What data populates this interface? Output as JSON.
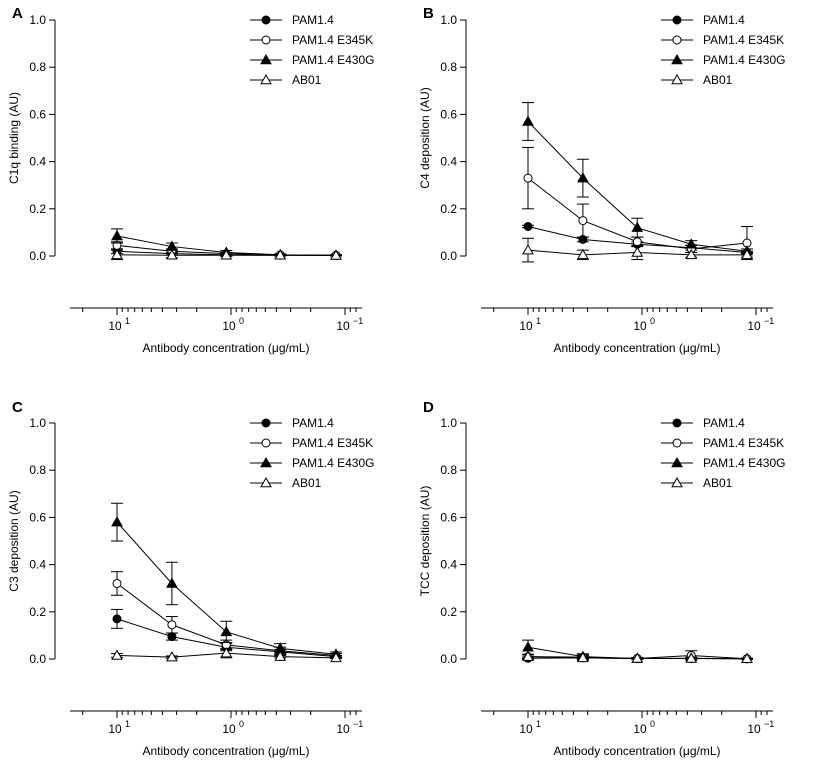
{
  "figure": {
    "background": "#ffffff",
    "ink": "#000000"
  },
  "chart_data": [
    {
      "type": "line",
      "panel": "A",
      "xlabel": "Antibody concentration (μg/mL)",
      "ylabel": "C1q binding (AU)",
      "x": [
        10,
        3.3,
        1.1,
        0.37,
        0.12
      ],
      "x_scale": "log-reversed",
      "x_ticks": [
        {
          "value": 10,
          "base": "10",
          "exp": "1"
        },
        {
          "value": 1,
          "base": "10",
          "exp": "0"
        },
        {
          "value": 0.1,
          "base": "10",
          "exp": "−1"
        }
      ],
      "ylim": [
        0,
        1.0
      ],
      "y_ticks": [
        "0.0",
        "0.2",
        "0.4",
        "0.6",
        "0.8",
        "1.0"
      ],
      "legend_position": "top-right",
      "series": [
        {
          "name": "PAM1.4",
          "marker": "filled-circle",
          "values": [
            0.02,
            0.01,
            0.005,
            0.003,
            0.002
          ],
          "errors": [
            0.01,
            0.005,
            0.003,
            0.002,
            0.002
          ]
        },
        {
          "name": "PAM1.4 E345K",
          "marker": "open-circle",
          "values": [
            0.045,
            0.02,
            0.01,
            0.005,
            0.003
          ],
          "errors": [
            0.015,
            0.01,
            0.005,
            0.003,
            0.002
          ]
        },
        {
          "name": "PAM1.4 E430G",
          "marker": "filled-triangle",
          "values": [
            0.085,
            0.04,
            0.015,
            0.005,
            0.003
          ],
          "errors": [
            0.03,
            0.015,
            0.008,
            0.004,
            0.003
          ]
        },
        {
          "name": "AB01",
          "marker": "open-triangle",
          "values": [
            0.005,
            0.003,
            0.003,
            0.003,
            0.002
          ],
          "errors": [
            0.02,
            0.01,
            0.005,
            0.003,
            0.002
          ]
        }
      ]
    },
    {
      "type": "line",
      "panel": "B",
      "xlabel": "Antibody concentration (μg/mL)",
      "ylabel": "C4 deposition (AU)",
      "x": [
        10,
        3.3,
        1.1,
        0.37,
        0.12
      ],
      "x_scale": "log-reversed",
      "x_ticks": [
        {
          "value": 10,
          "base": "10",
          "exp": "1"
        },
        {
          "value": 1,
          "base": "10",
          "exp": "0"
        },
        {
          "value": 0.1,
          "base": "10",
          "exp": "−1"
        }
      ],
      "ylim": [
        0,
        1.0
      ],
      "y_ticks": [
        "0.0",
        "0.2",
        "0.4",
        "0.6",
        "0.8",
        "1.0"
      ],
      "legend_position": "top-right",
      "series": [
        {
          "name": "PAM1.4",
          "marker": "filled-circle",
          "values": [
            0.125,
            0.07,
            0.05,
            0.035,
            0.015
          ],
          "errors": [
            0.005,
            0.01,
            0.01,
            0.01,
            0.005
          ]
        },
        {
          "name": "PAM1.4 E345K",
          "marker": "open-circle",
          "values": [
            0.33,
            0.15,
            0.06,
            0.03,
            0.055
          ],
          "errors": [
            0.13,
            0.07,
            0.02,
            0.015,
            0.07
          ]
        },
        {
          "name": "PAM1.4 E430G",
          "marker": "filled-triangle",
          "values": [
            0.57,
            0.33,
            0.12,
            0.05,
            0.02
          ],
          "errors": [
            0.08,
            0.08,
            0.04,
            0.015,
            0.01
          ]
        },
        {
          "name": "AB01",
          "marker": "open-triangle",
          "values": [
            0.025,
            0.005,
            0.015,
            0.005,
            0.005
          ],
          "errors": [
            0.05,
            0.02,
            0.03,
            0.01,
            0.01
          ]
        }
      ]
    },
    {
      "type": "line",
      "panel": "C",
      "xlabel": "Antibody concentration (μg/mL)",
      "ylabel": "C3 deposition (AU)",
      "x": [
        10,
        3.3,
        1.1,
        0.37,
        0.12
      ],
      "x_scale": "log-reversed",
      "x_ticks": [
        {
          "value": 10,
          "base": "10",
          "exp": "1"
        },
        {
          "value": 1,
          "base": "10",
          "exp": "0"
        },
        {
          "value": 0.1,
          "base": "10",
          "exp": "−1"
        }
      ],
      "ylim": [
        0,
        1.0
      ],
      "y_ticks": [
        "0.0",
        "0.2",
        "0.4",
        "0.6",
        "0.8",
        "1.0"
      ],
      "legend_position": "top-right",
      "series": [
        {
          "name": "PAM1.4",
          "marker": "filled-circle",
          "values": [
            0.17,
            0.095,
            0.05,
            0.03,
            0.01
          ],
          "errors": [
            0.04,
            0.015,
            0.015,
            0.01,
            0.005
          ]
        },
        {
          "name": "PAM1.4 E345K",
          "marker": "open-circle",
          "values": [
            0.32,
            0.145,
            0.06,
            0.035,
            0.015
          ],
          "errors": [
            0.05,
            0.035,
            0.02,
            0.015,
            0.008
          ]
        },
        {
          "name": "PAM1.4 E430G",
          "marker": "filled-triangle",
          "values": [
            0.58,
            0.32,
            0.115,
            0.045,
            0.02
          ],
          "errors": [
            0.08,
            0.09,
            0.045,
            0.02,
            0.01
          ]
        },
        {
          "name": "AB01",
          "marker": "open-triangle",
          "values": [
            0.015,
            0.008,
            0.025,
            0.01,
            0.005
          ],
          "errors": [
            0.008,
            0.005,
            0.02,
            0.005,
            0.003
          ]
        }
      ]
    },
    {
      "type": "line",
      "panel": "D",
      "xlabel": "Antibody concentration (μg/mL)",
      "ylabel": "TCC deposition (AU)",
      "x": [
        10,
        3.3,
        1.1,
        0.37,
        0.12
      ],
      "x_scale": "log-reversed",
      "x_ticks": [
        {
          "value": 10,
          "base": "10",
          "exp": "1"
        },
        {
          "value": 1,
          "base": "10",
          "exp": "0"
        },
        {
          "value": 0.1,
          "base": "10",
          "exp": "−1"
        }
      ],
      "ylim": [
        0,
        1.0
      ],
      "y_ticks": [
        "0.0",
        "0.2",
        "0.4",
        "0.6",
        "0.8",
        "1.0"
      ],
      "legend_position": "top-right",
      "series": [
        {
          "name": "PAM1.4",
          "marker": "filled-circle",
          "values": [
            0.003,
            0.005,
            0.002,
            0.002,
            0.001
          ],
          "errors": [
            0.005,
            0.01,
            0.003,
            0.003,
            0.002
          ]
        },
        {
          "name": "PAM1.4 E345K",
          "marker": "open-circle",
          "values": [
            0.01,
            0.008,
            0.002,
            0.015,
            0.001
          ],
          "errors": [
            0.008,
            0.01,
            0.003,
            0.02,
            0.002
          ]
        },
        {
          "name": "PAM1.4 E430G",
          "marker": "filled-triangle",
          "values": [
            0.05,
            0.01,
            0.002,
            0.003,
            0.001
          ],
          "errors": [
            0.03,
            0.012,
            0.003,
            0.005,
            0.002
          ]
        },
        {
          "name": "AB01",
          "marker": "open-triangle",
          "values": [
            0.01,
            0.005,
            0.002,
            0.002,
            0.001
          ],
          "errors": [
            0.008,
            0.005,
            0.003,
            0.003,
            0.002
          ]
        }
      ]
    }
  ]
}
